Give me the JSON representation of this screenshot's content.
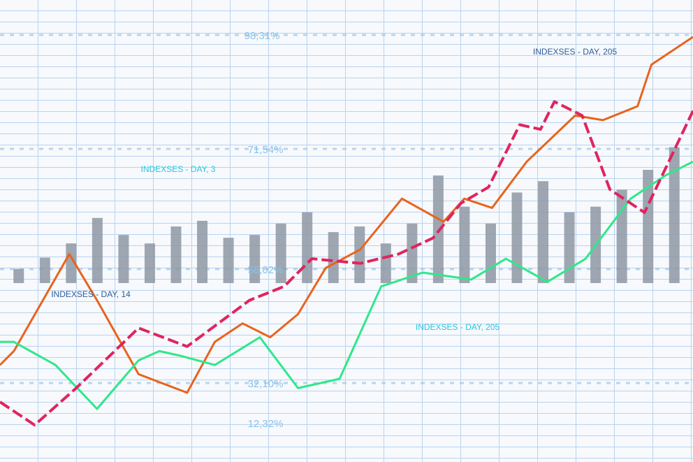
{
  "chart_data": [
    {
      "type": "bar",
      "categories": [
        null,
        null,
        null,
        null,
        null,
        null,
        null,
        null,
        null,
        null,
        null,
        null,
        null,
        null,
        null,
        null,
        null,
        null,
        null,
        null,
        null,
        null,
        null,
        null,
        null,
        null
      ],
      "values": [
        5,
        9,
        14,
        23,
        17,
        14,
        20,
        22,
        16,
        17,
        21,
        25,
        18,
        20,
        14,
        21,
        38,
        27,
        21,
        32,
        36,
        25,
        27,
        33,
        40,
        48
      ],
      "color": "#8e98a3",
      "ylim": [
        0,
        100
      ],
      "annotations": [
        "98,31%",
        "71,54%",
        "58,02%",
        "32,10%",
        "12,32%",
        "INDEXSES - DAY, 205",
        "INDEXSES - DAY, 3",
        "INDEXSES - DAY, 14",
        "INDEXSES - DAY, 205"
      ]
    },
    {
      "type": "line",
      "color": "#e8641c",
      "dashed": false,
      "xlim": [
        0,
        100
      ],
      "ylim": [
        0,
        100
      ],
      "x": [
        0,
        2,
        10,
        14,
        20,
        27,
        31,
        35,
        39,
        43,
        47,
        52,
        58,
        64,
        67,
        71,
        76,
        83,
        87,
        92,
        94,
        100
      ],
      "values": [
        21,
        24,
        45,
        35,
        19,
        15,
        26,
        30,
        27,
        32,
        42,
        46,
        57,
        52,
        57,
        55,
        65,
        75,
        74,
        77,
        86,
        92
      ]
    },
    {
      "type": "line",
      "color": "#2ee88a",
      "dashed": false,
      "xlim": [
        0,
        100
      ],
      "ylim": [
        0,
        100
      ],
      "x": [
        0,
        2,
        8,
        14,
        20,
        23,
        26,
        31,
        37.5,
        43,
        49,
        55,
        61,
        68,
        73,
        79,
        84.5,
        91,
        96,
        100
      ],
      "values": [
        26,
        26,
        21,
        11.5,
        22,
        24,
        23,
        21,
        27,
        16,
        18,
        38,
        41,
        39.5,
        44,
        39,
        44,
        57,
        62,
        65
      ]
    },
    {
      "type": "line",
      "color": "#e0245e",
      "dashed": true,
      "xlim": [
        0,
        100
      ],
      "ylim": [
        0,
        100
      ],
      "x": [
        0,
        5,
        11,
        20,
        27,
        36,
        41,
        45,
        52,
        57.5,
        62.5,
        66.5,
        70.5,
        75,
        78,
        80,
        84,
        88,
        93,
        100
      ],
      "values": [
        13,
        8,
        16,
        29,
        25,
        35,
        38,
        44,
        43,
        45,
        48.5,
        56,
        59.5,
        73,
        72,
        78,
        75,
        59,
        54,
        76
      ]
    }
  ]
}
